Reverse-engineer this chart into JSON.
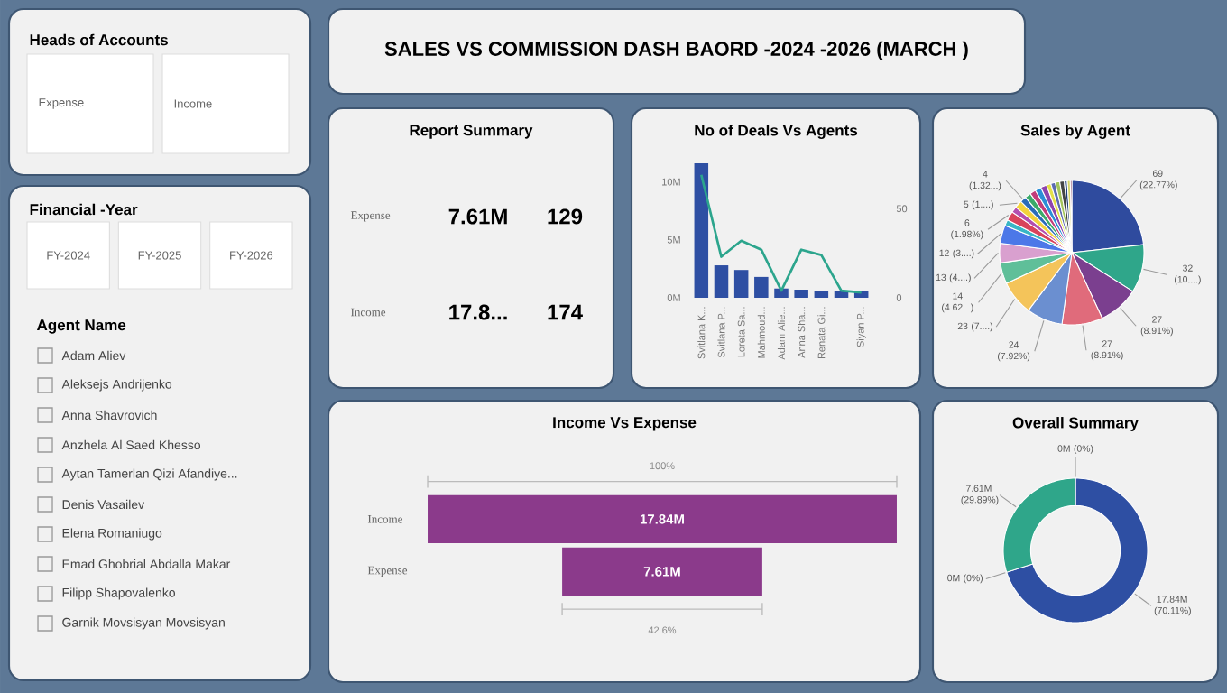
{
  "chart_data": [
    {
      "type": "other",
      "title": "Heads of Accounts",
      "annotations": [
        "Expense",
        "Income"
      ]
    },
    {
      "type": "other",
      "title": "SALES VS COMMISSION DASH BAORD -2024 -2026 (MARCH )"
    },
    {
      "type": "other",
      "title": "Financial -Year",
      "annotations": [
        "FY-2024",
        "FY-2025",
        "FY-2026"
      ]
    },
    {
      "type": "other",
      "title": "Report Summary",
      "annotations": [
        "Expense",
        "7.61M",
        "129",
        "Income",
        "17.8...",
        "174"
      ]
    },
    {
      "type": "bar",
      "title": "No of Deals Vs Agents",
      "categories": [
        "Svitlana K...",
        "Svitlana P...",
        "Loreta Sa...",
        "Mahmoud...",
        "Adam Alie...",
        "Anna Sha...",
        "Renata Gi...",
        null,
        "Siyan P..."
      ],
      "series": [
        {
          "type": "bar",
          "color": "#2e4fa3",
          "values": [
            11.6,
            2.8,
            2.4,
            1.8,
            0.8,
            0.7,
            0.6,
            0.6,
            0.6
          ]
        },
        {
          "type": "line",
          "axis": "y2",
          "color": "#2ca58d",
          "values": [
            69,
            23,
            32,
            27,
            4,
            27,
            24,
            4,
            3
          ]
        }
      ],
      "ylim": [
        0,
        12
      ],
      "yticks": [
        {
          "value": 0,
          "label": "0M"
        },
        {
          "value": 5,
          "label": "5M"
        },
        {
          "value": 10,
          "label": "10M"
        }
      ],
      "y2lim": [
        0,
        78
      ],
      "y2ticks": [
        0,
        50
      ]
    },
    {
      "type": "pie",
      "title": "Sales by Agent",
      "categories": [
        null,
        null,
        null,
        null,
        null,
        null,
        null,
        null,
        null,
        null,
        null,
        null,
        null,
        null,
        null,
        null,
        null,
        null,
        null,
        null,
        null,
        null,
        null,
        null,
        null
      ],
      "values": [
        69,
        32,
        27,
        27,
        24,
        23,
        14,
        13,
        12,
        4,
        6,
        4,
        5,
        4,
        4,
        4,
        4,
        4,
        3,
        3,
        3,
        3,
        2,
        2,
        1
      ],
      "colors": [
        "#2f4b9e",
        "#2fa68a",
        "#7b3f8f",
        "#e06b7b",
        "#6b8fd0",
        "#f4c45a",
        "#5fbf99",
        "#d9a0cf",
        "#4c78e8",
        "#39b6c5",
        "#d9435b",
        "#b34fb0",
        "#f2d23c",
        "#2a6bb8",
        "#3caa6a",
        "#c23d7a",
        "#2c8fd6",
        "#8e44ad",
        "#e4e04a",
        "#5d6bb0",
        "#a3c45b",
        "#444444",
        "#1f3f7a",
        "#d4d46a",
        "#7a2f5b"
      ],
      "value_labels": [
        "69 (22.77%)",
        "32 (10....)",
        "27 (8.91%)",
        "27 (8.91%)",
        "24 (7.92%)",
        "23 (7....)",
        "14 (4.62...)",
        "13 (4....)",
        "12 (3....)",
        null,
        "6 (1.98%)",
        null,
        "5 (1....)",
        "4 (1.32...)",
        null,
        null,
        null,
        null,
        null,
        null,
        null,
        null,
        null,
        null,
        null
      ]
    },
    {
      "type": "other",
      "title": "Agent Name",
      "annotations": [
        "Adam Aliev",
        "Aleksejs Andrijenko",
        "Anna Shavrovich",
        "Anzhela Al Saed Khesso",
        "Aytan Tamerlan Qizi Afandiye...",
        "Denis Vasailev",
        "Elena Romaniugo",
        "Emad Ghobrial Abdalla Makar",
        "Filipp Shapovalenko",
        "Garnik Movsisyan Movsisyan"
      ]
    },
    {
      "type": "other",
      "title": "Income Vs Expense",
      "categories": [
        "Income",
        "Expense"
      ],
      "values": [
        17.84,
        7.61
      ],
      "value_labels": [
        "17.84M",
        "7.61M"
      ],
      "color": "#8b3a8b",
      "annotations": [
        "100%",
        "42.6%"
      ]
    },
    {
      "type": "donut",
      "title": "Overall Summary",
      "categories": [
        null,
        null,
        null,
        null
      ],
      "values": [
        70.11,
        0,
        29.89,
        0
      ],
      "colors": [
        "#2e4fa3",
        "#9aa0a6",
        "#2fa68a",
        "#c0c0c0"
      ],
      "value_labels": [
        "17.84M (70.11%)",
        "0M (0%)",
        "7.61M (29.89%)",
        "0M (0%)"
      ]
    }
  ]
}
